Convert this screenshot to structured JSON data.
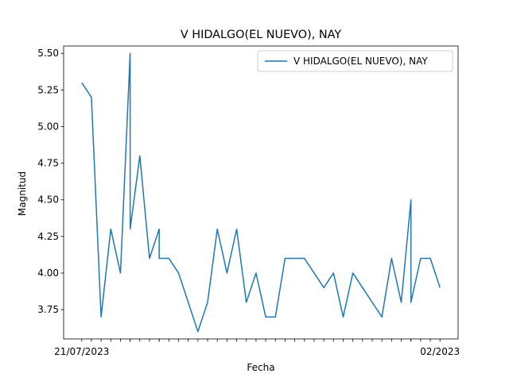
{
  "chart_data": {
    "type": "line",
    "title": "V HIDALGO(EL NUEVO), NAY",
    "xlabel": "Fecha",
    "ylabel": "Magnitud",
    "ylim": [
      3.55,
      5.55
    ],
    "yticks": [
      3.75,
      4.0,
      4.25,
      4.5,
      4.75,
      5.0,
      5.25,
      5.5
    ],
    "ytick_labels": [
      "3.75",
      "4.00",
      "4.25",
      "4.50",
      "4.75",
      "5.00",
      "5.25",
      "5.50"
    ],
    "x": [
      0,
      1,
      2,
      3,
      4,
      5,
      5,
      6,
      7,
      8,
      8,
      9,
      10,
      11,
      12,
      13,
      14,
      15,
      16,
      17,
      18,
      19,
      20,
      21,
      22,
      23,
      24,
      25,
      26,
      27,
      28,
      29,
      30,
      31,
      32,
      33,
      34,
      34,
      35,
      36,
      37
    ],
    "x_tick_labels": [
      "21/07/2023",
      "",
      "",
      "",
      "",
      "",
      "",
      "",
      "",
      "",
      "",
      "",
      "",
      "",
      "",
      "",
      "",
      "",
      "",
      "",
      "",
      "",
      "",
      "",
      "",
      "",
      "",
      "",
      "",
      "",
      "",
      "",
      "",
      "",
      "",
      "",
      "",
      "",
      "02/2023"
    ],
    "series": [
      {
        "name": "V HIDALGO(EL NUEVO), NAY",
        "color": "#1f77b4",
        "values": [
          5.3,
          5.2,
          3.7,
          4.3,
          4.0,
          5.5,
          4.3,
          4.8,
          4.1,
          4.3,
          4.1,
          4.1,
          4.0,
          3.8,
          3.6,
          3.8,
          4.3,
          4.0,
          4.3,
          3.8,
          4.0,
          3.7,
          3.7,
          4.1,
          4.1,
          4.1,
          4.0,
          3.9,
          4.0,
          3.7,
          4.0,
          3.9,
          3.8,
          3.7,
          4.1,
          3.8,
          4.5,
          3.8,
          4.1,
          4.1,
          3.9
        ]
      }
    ],
    "legend_position": "top-right",
    "grid": false
  }
}
